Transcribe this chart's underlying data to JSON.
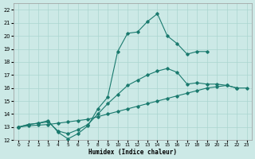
{
  "xlabel": "Humidex (Indice chaleur)",
  "xlim": [
    -0.5,
    23.5
  ],
  "ylim": [
    12,
    22.5
  ],
  "yticks": [
    12,
    13,
    14,
    15,
    16,
    17,
    18,
    19,
    20,
    21,
    22
  ],
  "xticks": [
    0,
    1,
    2,
    3,
    4,
    5,
    6,
    7,
    8,
    9,
    10,
    11,
    12,
    13,
    14,
    15,
    16,
    17,
    18,
    19,
    20,
    21,
    22,
    23
  ],
  "bg_color": "#cce9e6",
  "grid_color": "#aad5d0",
  "line_color": "#1a7a6e",
  "line1_x": [
    0,
    1,
    2,
    3,
    4,
    5,
    6,
    7,
    8,
    9,
    10,
    11,
    12,
    13,
    14,
    15,
    16,
    17,
    18,
    19
  ],
  "line1_y": [
    13.0,
    13.2,
    13.3,
    13.5,
    12.6,
    12.1,
    12.5,
    13.1,
    14.4,
    15.3,
    18.8,
    20.2,
    20.3,
    21.1,
    21.7,
    20.0,
    19.4,
    18.6,
    18.8,
    18.8
  ],
  "line2_x": [
    0,
    1,
    2,
    3,
    4,
    5,
    6,
    7,
    8,
    9,
    10,
    11,
    12,
    13,
    14,
    15,
    16,
    17,
    18,
    19,
    20,
    21,
    22
  ],
  "line2_y": [
    13.0,
    13.2,
    13.3,
    13.4,
    12.7,
    12.5,
    12.8,
    13.2,
    14.0,
    14.8,
    15.5,
    16.2,
    16.6,
    17.0,
    17.3,
    17.5,
    17.2,
    16.3,
    16.4,
    16.3,
    16.3,
    16.2,
    16.0
  ],
  "line3_x": [
    0,
    1,
    2,
    3,
    4,
    5,
    6,
    7,
    8,
    9,
    10,
    11,
    12,
    13,
    14,
    15,
    16,
    17,
    18,
    19,
    20,
    21,
    22,
    23
  ],
  "line3_y": [
    13.0,
    13.1,
    13.15,
    13.2,
    13.3,
    13.4,
    13.5,
    13.6,
    13.8,
    14.0,
    14.2,
    14.4,
    14.6,
    14.8,
    15.0,
    15.2,
    15.4,
    15.6,
    15.8,
    16.0,
    16.1,
    16.2,
    16.0,
    16.0
  ]
}
